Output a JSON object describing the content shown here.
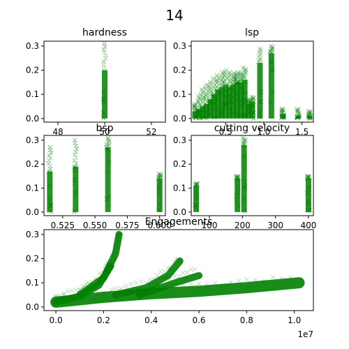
{
  "figure": {
    "title": "14"
  },
  "chart_data": [
    {
      "id": "hardness",
      "type": "scatter",
      "title": "hardness",
      "marker": "x",
      "color": "#008000",
      "xlim": [
        47.4,
        52.6
      ],
      "ylim": [
        -0.015,
        0.32
      ],
      "xticks": [
        48,
        50,
        52
      ],
      "yticks": [
        0.0,
        0.1,
        0.2,
        0.3
      ],
      "xtick_labels": [
        "48",
        "50",
        "52"
      ],
      "ytick_labels": [
        "0.0",
        "0.1",
        "0.2",
        "0.3"
      ],
      "clusters": [
        {
          "x": 50,
          "y_dense": [
            0.0,
            0.2
          ],
          "y_sparse": [
            0.2,
            0.31
          ]
        }
      ]
    },
    {
      "id": "lsp",
      "type": "scatter",
      "title": "lsp",
      "marker": "x",
      "color": "#008000",
      "xlim": [
        0.05,
        1.65
      ],
      "ylim": [
        -0.015,
        0.32
      ],
      "xticks": [
        0.5,
        1.0,
        1.5
      ],
      "yticks": [
        0.0,
        0.1,
        0.2,
        0.3
      ],
      "xtick_labels": [
        "0.5",
        "1.0",
        "1.5"
      ],
      "ytick_labels": [
        "0.0",
        "0.1",
        "0.2",
        "0.3"
      ],
      "clusters": [
        {
          "x": 0.1,
          "y_dense": [
            0.0,
            0.03
          ],
          "y_sparse": [
            0.03,
            0.06
          ]
        },
        {
          "x": 0.15,
          "y_dense": [
            0.0,
            0.04
          ],
          "y_sparse": [
            0.04,
            0.1
          ]
        },
        {
          "x": 0.2,
          "y_dense": [
            0.0,
            0.05
          ],
          "y_sparse": [
            0.05,
            0.12
          ]
        },
        {
          "x": 0.25,
          "y_dense": [
            0.0,
            0.06
          ],
          "y_sparse": [
            0.06,
            0.14
          ]
        },
        {
          "x": 0.3,
          "y_dense": [
            0.0,
            0.08
          ],
          "y_sparse": [
            0.08,
            0.15
          ]
        },
        {
          "x": 0.35,
          "y_dense": [
            0.0,
            0.1
          ],
          "y_sparse": [
            0.1,
            0.17
          ]
        },
        {
          "x": 0.4,
          "y_dense": [
            0.0,
            0.12
          ],
          "y_sparse": [
            0.12,
            0.18
          ]
        },
        {
          "x": 0.45,
          "y_dense": [
            0.0,
            0.13
          ],
          "y_sparse": [
            0.13,
            0.19
          ]
        },
        {
          "x": 0.5,
          "y_dense": [
            0.0,
            0.14
          ],
          "y_sparse": [
            0.14,
            0.2
          ]
        },
        {
          "x": 0.55,
          "y_dense": [
            0.0,
            0.13
          ],
          "y_sparse": [
            0.13,
            0.19
          ]
        },
        {
          "x": 0.6,
          "y_dense": [
            0.0,
            0.14
          ],
          "y_sparse": [
            0.14,
            0.19
          ]
        },
        {
          "x": 0.65,
          "y_dense": [
            0.0,
            0.15
          ],
          "y_sparse": [
            0.15,
            0.19
          ]
        },
        {
          "x": 0.7,
          "y_dense": [
            0.0,
            0.15
          ],
          "y_sparse": [
            0.15,
            0.19
          ]
        },
        {
          "x": 0.75,
          "y_dense": [
            0.0,
            0.16
          ],
          "y_sparse": [
            0.16,
            0.21
          ]
        },
        {
          "x": 0.8,
          "y_dense": [
            0.0,
            0.06
          ],
          "y_sparse": [
            0.06,
            0.08
          ]
        },
        {
          "x": 0.85,
          "y_dense": [
            0.0,
            0.07
          ],
          "y_sparse": [
            0.07,
            0.09
          ]
        },
        {
          "x": 0.95,
          "y_dense": [
            0.0,
            0.23
          ],
          "y_sparse": [
            0.23,
            0.29
          ]
        },
        {
          "x": 1.1,
          "y_dense": [
            0.0,
            0.27
          ],
          "y_sparse": [
            0.27,
            0.3
          ]
        },
        {
          "x": 1.25,
          "y_dense": [
            0.0,
            0.02
          ],
          "y_sparse": [
            0.02,
            0.04
          ]
        },
        {
          "x": 1.45,
          "y_dense": [
            0.0,
            0.01
          ],
          "y_sparse": [
            0.01,
            0.04
          ]
        },
        {
          "x": 1.6,
          "y_dense": [
            0.0,
            0.01
          ],
          "y_sparse": [
            0.01,
            0.03
          ]
        }
      ]
    },
    {
      "id": "bsp",
      "type": "scatter",
      "title": "bsp",
      "marker": "x",
      "color": "#008000",
      "xlim": [
        0.5105,
        0.6045
      ],
      "ylim": [
        -0.015,
        0.32
      ],
      "xticks": [
        0.525,
        0.55,
        0.575,
        0.6
      ],
      "yticks": [
        0.0,
        0.1,
        0.2,
        0.3
      ],
      "xtick_labels": [
        "0.525",
        "0.550",
        "0.575",
        "0.600"
      ],
      "ytick_labels": [
        "0.0",
        "0.1",
        "0.2",
        "0.3"
      ],
      "clusters": [
        {
          "x": 0.515,
          "y_dense": [
            0.0,
            0.17
          ],
          "y_sparse": [
            0.17,
            0.27
          ]
        },
        {
          "x": 0.535,
          "y_dense": [
            0.0,
            0.19
          ],
          "y_sparse": [
            0.19,
            0.3
          ]
        },
        {
          "x": 0.56,
          "y_dense": [
            0.0,
            0.27
          ],
          "y_sparse": [
            0.27,
            0.31
          ]
        },
        {
          "x": 0.6,
          "y_dense": [
            0.0,
            0.14
          ],
          "y_sparse": [
            0.14,
            0.16
          ]
        }
      ]
    },
    {
      "id": "cutting_velocity",
      "type": "scatter",
      "title": "cutting velocity",
      "marker": "x",
      "color": "#008000",
      "xlim": [
        45,
        415
      ],
      "ylim": [
        -0.015,
        0.32
      ],
      "xticks": [
        100,
        200,
        300,
        400
      ],
      "yticks": [
        0.0,
        0.1,
        0.2,
        0.3
      ],
      "xtick_labels": [
        "100",
        "200",
        "300",
        "400"
      ],
      "ytick_labels": [
        "0.0",
        "0.1",
        "0.2",
        "0.3"
      ],
      "clusters": [
        {
          "x": 60,
          "y_dense": [
            0.0,
            0.11
          ],
          "y_sparse": [
            0.11,
            0.12
          ]
        },
        {
          "x": 185,
          "y_dense": [
            0.0,
            0.14
          ],
          "y_sparse": [
            0.14,
            0.15
          ]
        },
        {
          "x": 205,
          "y_dense": [
            0.0,
            0.28
          ],
          "y_sparse": [
            0.28,
            0.31
          ]
        },
        {
          "x": 400,
          "y_dense": [
            0.0,
            0.14
          ],
          "y_sparse": [
            0.14,
            0.15
          ]
        }
      ]
    },
    {
      "id": "engagements",
      "type": "scatter",
      "title": "Engagements",
      "marker": "x",
      "color": "#008000",
      "xlim": [
        -500000,
        10800000
      ],
      "ylim": [
        -0.015,
        0.32
      ],
      "xticks": [
        0,
        2000000,
        4000000,
        6000000,
        8000000,
        10000000
      ],
      "yticks": [
        0.0,
        0.1,
        0.2,
        0.3
      ],
      "xtick_labels": [
        "0.0",
        "0.2",
        "0.4",
        "0.6",
        "0.8",
        "1.0"
      ],
      "ytick_labels": [
        "0.0",
        "0.1",
        "0.2",
        "0.3"
      ],
      "x_offset_label": "1e7",
      "trends": [
        {
          "name": "",
          "x": [
            0,
            2000000,
            4000000,
            6000000,
            8000000,
            10200000
          ],
          "y": [
            0.02,
            0.04,
            0.055,
            0.065,
            0.08,
            0.1
          ]
        },
        {
          "name": "",
          "x": [
            0,
            1000000,
            1800000,
            2300000
          ],
          "y": [
            0.02,
            0.045,
            0.09,
            0.17
          ]
        },
        {
          "name": "",
          "x": [
            1000000,
            2000000,
            2500000,
            2650000
          ],
          "y": [
            0.05,
            0.12,
            0.22,
            0.3
          ]
        },
        {
          "name": "",
          "x": [
            2500000,
            3800000,
            4700000,
            5200000
          ],
          "y": [
            0.05,
            0.08,
            0.13,
            0.19
          ]
        },
        {
          "name": "",
          "x": [
            3500000,
            5000000,
            6000000
          ],
          "y": [
            0.05,
            0.1,
            0.13
          ]
        }
      ]
    }
  ]
}
